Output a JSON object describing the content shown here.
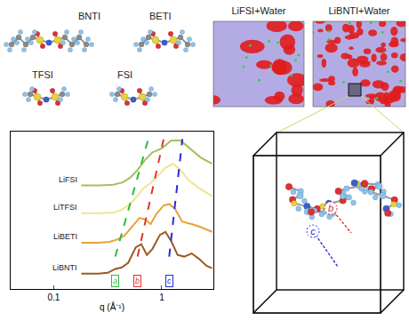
{
  "molecules": [
    "BNTI",
    "BETI",
    "TFSI",
    "FSI"
  ],
  "snapshots": [
    "LiFSI+Water",
    "LiBNTI+Water"
  ],
  "chart_data": {
    "type": "line",
    "x_label": "q (Å⁻¹)",
    "log": "x",
    "xlim": [
      0.04,
      3
    ],
    "xticks": [
      0.1,
      1
    ],
    "ylim": [
      0,
      10.5
    ],
    "tick_labels": "x",
    "grid": false,
    "series": [
      {
        "name": "LiFSI",
        "color": "#a4c15a",
        "x": [
          0.18,
          0.27,
          0.356,
          0.435,
          0.509,
          0.597,
          0.7,
          0.82,
          1.0,
          1.22,
          1.49,
          1.81,
          2.3,
          2.92
        ],
        "values": [
          6.91,
          6.91,
          6.96,
          7.11,
          7.42,
          7.94,
          8.61,
          9.12,
          9.38,
          9.9,
          9.9,
          9.38,
          8.76,
          8.35
        ]
      },
      {
        "name": "LiTFSI",
        "color": "#efe594",
        "x": [
          0.18,
          0.27,
          0.356,
          0.418,
          0.489,
          0.574,
          0.672,
          0.788,
          0.924,
          1.08,
          1.27,
          1.49,
          1.74,
          2.13,
          2.92
        ],
        "values": [
          5.05,
          5.05,
          5.1,
          5.26,
          5.57,
          6.08,
          6.7,
          7.06,
          7.58,
          8.09,
          8.35,
          7.94,
          7.32,
          6.8,
          6.19
        ]
      },
      {
        "name": "LiBETI",
        "color": "#e9a13b",
        "x": [
          0.18,
          0.259,
          0.329,
          0.386,
          0.452,
          0.53,
          0.621,
          0.7,
          0.788,
          0.888,
          1.04,
          1.17,
          1.32,
          1.55,
          1.89,
          2.3,
          2.92
        ],
        "values": [
          3.09,
          3.09,
          3.14,
          3.3,
          3.56,
          4.12,
          4.74,
          4.64,
          4.33,
          5.0,
          5.57,
          5.67,
          5.36,
          4.48,
          4.33,
          4.12,
          3.81
        ]
      },
      {
        "name": "LiBNTI",
        "color": "#9c5a1f",
        "x": [
          0.18,
          0.259,
          0.316,
          0.371,
          0.426,
          0.489,
          0.574,
          0.646,
          0.728,
          0.82,
          0.961,
          1.08,
          1.22,
          1.4,
          1.61,
          1.89,
          2.21,
          2.59,
          2.92
        ],
        "values": [
          1.03,
          1.03,
          1.08,
          1.34,
          1.44,
          1.75,
          2.78,
          2.99,
          2.27,
          2.68,
          3.61,
          3.81,
          3.2,
          2.27,
          2.16,
          2.37,
          2.01,
          1.55,
          1.39
        ]
      }
    ],
    "guides": [
      {
        "label": "a",
        "color": "#2dbd3a",
        "line_style": "dashed",
        "x": [
          0.371,
          0.743
        ],
        "values": [
          2.16,
          9.9
        ]
      },
      {
        "label": "b",
        "color": "#e0352b",
        "line_style": "dashed",
        "x": [
          0.597,
          1.04
        ],
        "values": [
          2.16,
          10
        ]
      },
      {
        "label": "c",
        "color": "#2a2ad8",
        "line_style": "dashed",
        "x": [
          1.17,
          1.55
        ],
        "values": [
          2.16,
          10
        ]
      }
    ]
  },
  "zoom_box": {
    "labels": [
      {
        "text": "b",
        "color": "#e0352b"
      },
      {
        "text": "c",
        "color": "#2a2ad8"
      }
    ]
  }
}
